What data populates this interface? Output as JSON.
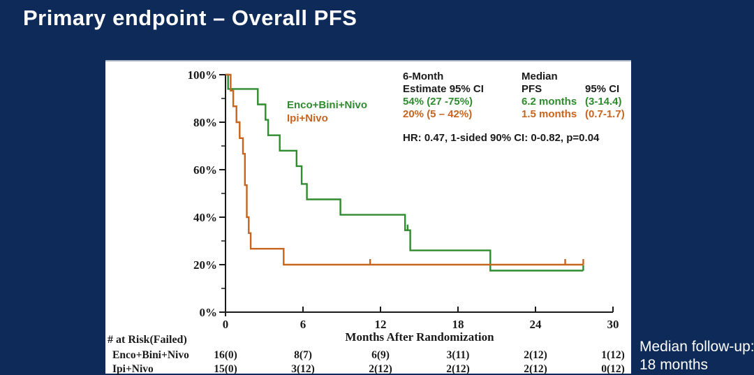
{
  "title": "Primary endpoint – Overall PFS",
  "note": {
    "line1": "Median follow-up:",
    "line2": "18 months"
  },
  "legend": {
    "series1": "Enco+Bini+Nivo",
    "series2": "Ipi+Nivo"
  },
  "stats": {
    "col1_header1": "6-Month",
    "col1_header2": "Estimate 95% CI",
    "col1_row1": "54% (27 -75%)",
    "col1_row2": "20% (5 – 42%)",
    "col2_header1": "Median",
    "col2_header2": "PFS",
    "col3_header": "95% CI",
    "col2_row1": "6.2 months",
    "col2_row2": "1.5 months",
    "col3_row1": "(3-14.4)",
    "col3_row2": "(0.7-1.7)",
    "hr_line": "HR: 0.47, 1-sided 90% CI: 0-0.82, p=0.04"
  },
  "axis": {
    "x_title": "Months After Randomization",
    "x_tick_labels": [
      "0",
      "6",
      "12",
      "18",
      "24",
      "30"
    ],
    "y_tick_labels": [
      "100%",
      "80%",
      "60%",
      "40%",
      "20%",
      "0%"
    ]
  },
  "risk_table": {
    "header": "# at Risk(Failed)",
    "rows": [
      {
        "label": "Enco+Bini+Nivo",
        "color": "#2e8b2e",
        "values": [
          "16(0)",
          "8(7)",
          "6(9)",
          "3(11)",
          "2(12)",
          "1(12)"
        ]
      },
      {
        "label": "Ipi+Nivo",
        "color": "#c7641e",
        "values": [
          "15(0)",
          "3(12)",
          "2(12)",
          "2(12)",
          "2(12)",
          "0(12)"
        ]
      }
    ]
  },
  "chart_data": {
    "type": "line",
    "subtype": "kaplan-meier-step",
    "title": "",
    "xlabel": "Months After Randomization",
    "ylabel": "",
    "xlim": [
      0,
      30
    ],
    "ylim": [
      0,
      100
    ],
    "x_ticks": [
      0,
      6,
      12,
      18,
      24,
      30
    ],
    "y_ticks": [
      0,
      20,
      40,
      60,
      80,
      100
    ],
    "y_minor_ticks": [
      10,
      30,
      50,
      70,
      90
    ],
    "grid": false,
    "legend_position": "inside-top-left",
    "series": [
      {
        "name": "Enco+Bini+Nivo",
        "color": "#2e8b2e",
        "steps": [
          [
            0,
            100
          ],
          [
            0.2,
            94
          ],
          [
            2.5,
            87.5
          ],
          [
            3.1,
            81
          ],
          [
            3.3,
            74.5
          ],
          [
            4.2,
            68
          ],
          [
            5.5,
            61.5
          ],
          [
            5.9,
            54
          ],
          [
            6.3,
            47.5
          ],
          [
            8.9,
            41
          ],
          [
            13.9,
            34.5
          ],
          [
            14.3,
            26
          ],
          [
            20.5,
            17.5
          ]
        ],
        "end_month": 27.7,
        "censor_marks": [
          [
            14.1,
            34.5
          ],
          [
            27.7,
            17.5
          ]
        ],
        "six_month_estimate": "54% (27 -75%)",
        "median_pfs": "6.2 months (3-14.4)"
      },
      {
        "name": "Ipi+Nivo",
        "color": "#c7641e",
        "steps": [
          [
            0,
            100
          ],
          [
            0.4,
            93.3
          ],
          [
            0.6,
            86.7
          ],
          [
            0.85,
            80
          ],
          [
            1.1,
            73.3
          ],
          [
            1.35,
            66.7
          ],
          [
            1.5,
            53.5
          ],
          [
            1.65,
            40
          ],
          [
            1.8,
            33.3
          ],
          [
            1.95,
            26.7
          ],
          [
            4.5,
            20
          ]
        ],
        "end_month": 27.7,
        "censor_marks": [
          [
            11.2,
            20
          ],
          [
            26.3,
            20
          ],
          [
            27.7,
            20
          ]
        ],
        "six_month_estimate": "20% (5 – 42%)",
        "median_pfs": "1.5 months (0.7-1.7)"
      }
    ],
    "annotations": {
      "hazard_ratio": "HR: 0.47, 1-sided 90% CI: 0-0.82, p=0.04"
    }
  },
  "colors": {
    "background": "#0e2a58",
    "panel": "#ffffff",
    "series1_green": "#2e8b2e",
    "series2_orange": "#c7641e",
    "axis_text": "#1a1a1a"
  }
}
